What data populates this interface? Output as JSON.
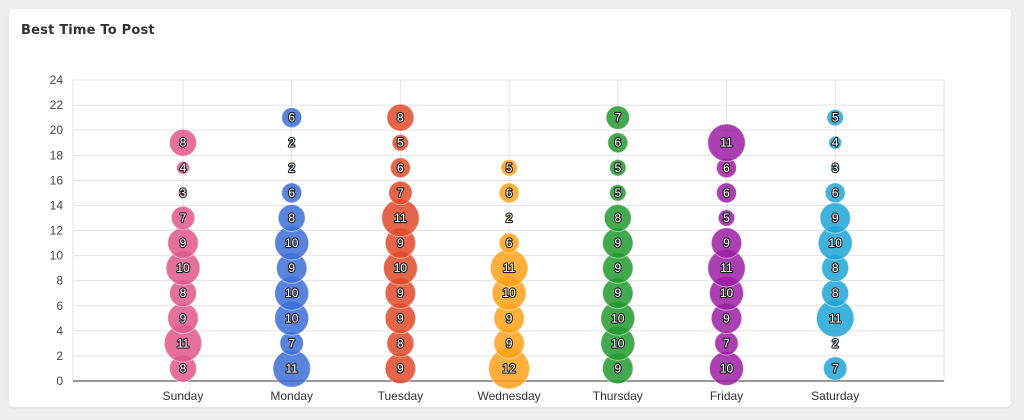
{
  "card": {
    "title": "Best Time To Post"
  },
  "colors": {
    "Sunday": "#e0588a",
    "Monday": "#3d6fd6",
    "Tuesday": "#e04a2c",
    "Wednesday": "#ffa21a",
    "Thursday": "#22992f",
    "Friday": "#9c1fa3",
    "Saturday": "#1fa5d6"
  },
  "chart_data": {
    "type": "scatter",
    "title": "",
    "xlabel": "",
    "ylabel": "",
    "ylim": [
      0,
      24
    ],
    "yticks": [
      0,
      2,
      4,
      6,
      8,
      10,
      12,
      14,
      16,
      18,
      20,
      22,
      24
    ],
    "grid": true,
    "categories": [
      "Sunday",
      "Monday",
      "Tuesday",
      "Wednesday",
      "Thursday",
      "Friday",
      "Saturday"
    ],
    "series": [
      {
        "category": "Sunday",
        "points": [
          [
            1,
            8
          ],
          [
            3,
            11
          ],
          [
            5,
            9
          ],
          [
            7,
            8
          ],
          [
            9,
            10
          ],
          [
            11,
            9
          ],
          [
            13,
            7
          ],
          [
            15,
            3
          ],
          [
            17,
            4
          ],
          [
            19,
            8
          ]
        ]
      },
      {
        "category": "Monday",
        "points": [
          [
            1,
            11
          ],
          [
            3,
            7
          ],
          [
            5,
            10
          ],
          [
            7,
            10
          ],
          [
            9,
            9
          ],
          [
            11,
            10
          ],
          [
            13,
            8
          ],
          [
            15,
            6
          ],
          [
            17,
            2
          ],
          [
            19,
            2
          ],
          [
            21,
            6
          ]
        ]
      },
      {
        "category": "Tuesday",
        "points": [
          [
            1,
            9
          ],
          [
            3,
            8
          ],
          [
            5,
            9
          ],
          [
            7,
            9
          ],
          [
            9,
            10
          ],
          [
            11,
            9
          ],
          [
            13,
            11
          ],
          [
            15,
            7
          ],
          [
            17,
            6
          ],
          [
            19,
            5
          ],
          [
            21,
            8
          ]
        ]
      },
      {
        "category": "Wednesday",
        "points": [
          [
            1,
            12
          ],
          [
            3,
            9
          ],
          [
            5,
            9
          ],
          [
            7,
            10
          ],
          [
            9,
            11
          ],
          [
            11,
            6
          ],
          [
            13,
            2
          ],
          [
            15,
            6
          ],
          [
            17,
            5
          ]
        ]
      },
      {
        "category": "Thursday",
        "points": [
          [
            1,
            9
          ],
          [
            3,
            10
          ],
          [
            5,
            10
          ],
          [
            7,
            9
          ],
          [
            9,
            9
          ],
          [
            11,
            9
          ],
          [
            13,
            8
          ],
          [
            15,
            5
          ],
          [
            17,
            5
          ],
          [
            19,
            6
          ],
          [
            21,
            7
          ]
        ]
      },
      {
        "category": "Friday",
        "points": [
          [
            1,
            10
          ],
          [
            3,
            7
          ],
          [
            5,
            9
          ],
          [
            7,
            10
          ],
          [
            9,
            11
          ],
          [
            11,
            9
          ],
          [
            13,
            5
          ],
          [
            15,
            6
          ],
          [
            17,
            6
          ],
          [
            19,
            11
          ]
        ]
      },
      {
        "category": "Saturday",
        "points": [
          [
            1,
            7
          ],
          [
            3,
            2
          ],
          [
            5,
            11
          ],
          [
            7,
            8
          ],
          [
            9,
            8
          ],
          [
            11,
            10
          ],
          [
            13,
            9
          ],
          [
            15,
            6
          ],
          [
            17,
            3
          ],
          [
            19,
            4
          ],
          [
            21,
            5
          ]
        ]
      }
    ]
  }
}
